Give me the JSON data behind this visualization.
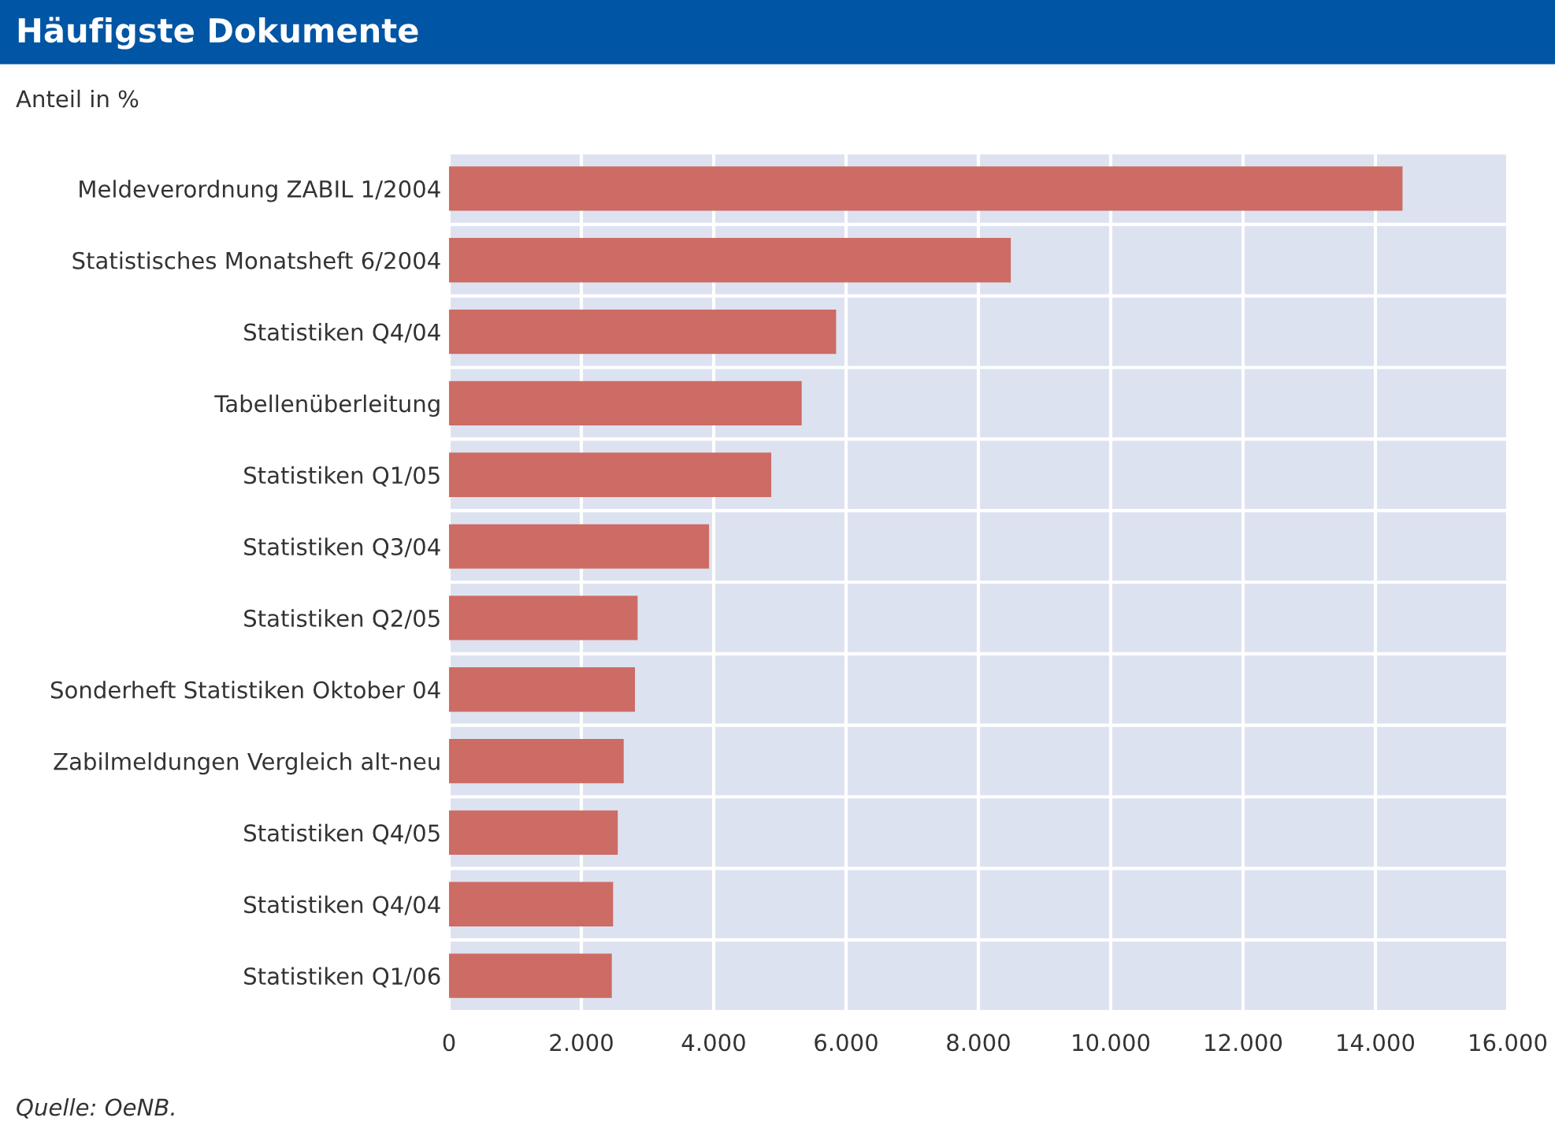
{
  "chart_data": {
    "type": "bar",
    "orientation": "horizontal",
    "title": "Häufigste Dokumente",
    "subtitle": "Anteil in %",
    "categories": [
      "Meldeverordnung ZABIL 1/2004",
      "Statistisches Monatsheft 6/2004",
      "Statistiken Q4/04",
      "Tabellenüberleitung",
      "Statistiken Q1/05",
      "Statistiken Q3/04",
      "Statistiken Q2/05",
      "Sonderheft Statistiken Oktober 04",
      "Zabilmeldungen Vergleich alt-neu",
      "Statistiken Q4/05",
      "Statistiken Q4/04",
      "Statistiken Q1/06"
    ],
    "values": [
      14410,
      8490,
      5850,
      5330,
      4870,
      3930,
      2850,
      2810,
      2640,
      2550,
      2480,
      2460
    ],
    "color": "#cd6b65",
    "xlim": [
      0,
      16000
    ],
    "xticks": [
      0,
      {
        "value": 2000,
        "label": "2.000"
      },
      {
        "value": 4000,
        "label": "4.000"
      },
      {
        "value": 6000,
        "label": "6.000"
      },
      {
        "value": 8000,
        "label": "8.000"
      },
      {
        "value": 10000,
        "label": "10.000"
      },
      {
        "value": 12000,
        "label": "12.000"
      },
      {
        "value": 14000,
        "label": "14.000"
      },
      {
        "value": 16000,
        "label": "16.000"
      }
    ],
    "grid": true,
    "annotations": [
      "Quelle: OeNB."
    ]
  }
}
